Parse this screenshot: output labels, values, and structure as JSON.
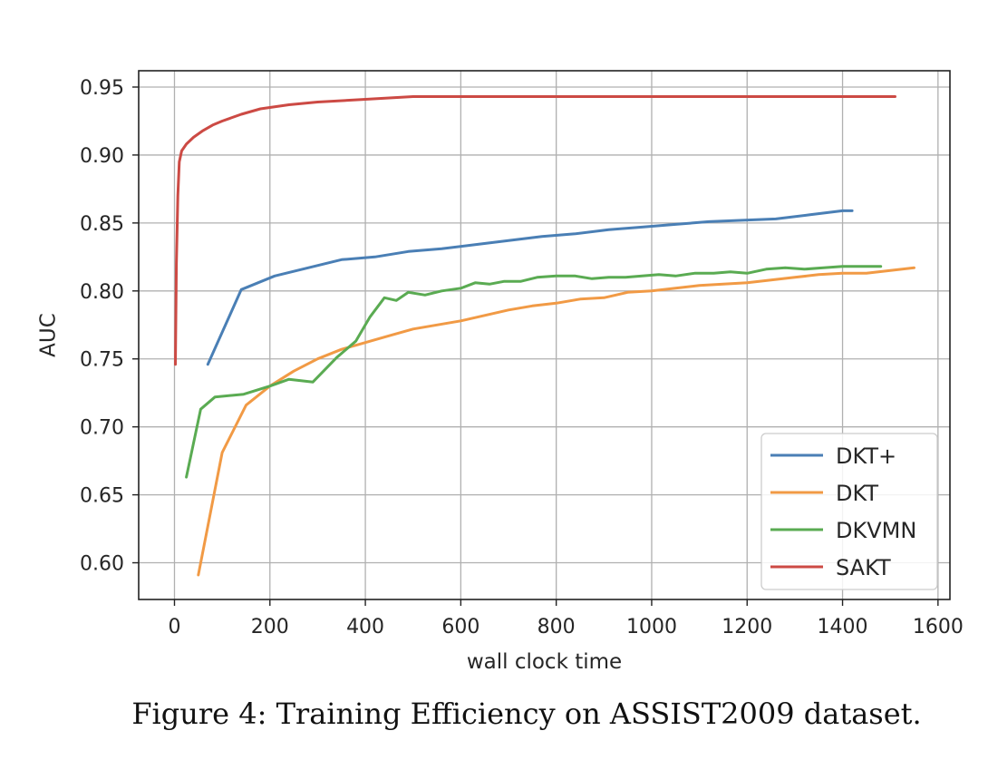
{
  "caption": "Figure 4: Training Efficiency on ASSIST2009 dataset.",
  "chart_data": {
    "type": "line",
    "title": "",
    "xlabel": "wall clock time",
    "ylabel": "AUC",
    "xlim": [
      -75,
      1625
    ],
    "ylim": [
      0.573,
      0.962
    ],
    "xticks": [
      0,
      200,
      400,
      600,
      800,
      1000,
      1200,
      1400,
      1600
    ],
    "yticks": [
      0.6,
      0.65,
      0.7,
      0.75,
      0.8,
      0.85,
      0.9,
      0.95
    ],
    "xtick_labels": [
      "0",
      "200",
      "400",
      "600",
      "800",
      "1000",
      "1200",
      "1400",
      "1600"
    ],
    "ytick_labels": [
      "0.60",
      "0.65",
      "0.70",
      "0.75",
      "0.80",
      "0.85",
      "0.90",
      "0.95"
    ],
    "grid": true,
    "legend_position": "lower-right",
    "series": [
      {
        "name": "DKT+",
        "color": "#4a7fb5",
        "x": [
          70,
          140,
          210,
          280,
          350,
          420,
          490,
          560,
          630,
          700,
          770,
          840,
          910,
          980,
          1050,
          1120,
          1190,
          1260,
          1330,
          1400,
          1420
        ],
        "y": [
          0.746,
          0.801,
          0.811,
          0.817,
          0.823,
          0.825,
          0.829,
          0.831,
          0.834,
          0.837,
          0.84,
          0.842,
          0.845,
          0.847,
          0.849,
          0.851,
          0.852,
          0.853,
          0.856,
          0.859,
          0.859
        ]
      },
      {
        "name": "DKT",
        "color": "#f19a45",
        "x": [
          50,
          100,
          150,
          200,
          250,
          300,
          350,
          400,
          450,
          500,
          550,
          600,
          650,
          700,
          750,
          800,
          850,
          900,
          950,
          1000,
          1050,
          1100,
          1150,
          1200,
          1250,
          1300,
          1350,
          1400,
          1450,
          1500,
          1550
        ],
        "y": [
          0.591,
          0.681,
          0.716,
          0.73,
          0.741,
          0.75,
          0.757,
          0.762,
          0.767,
          0.772,
          0.775,
          0.778,
          0.782,
          0.786,
          0.789,
          0.791,
          0.794,
          0.795,
          0.799,
          0.8,
          0.802,
          0.804,
          0.805,
          0.806,
          0.808,
          0.81,
          0.812,
          0.813,
          0.813,
          0.815,
          0.817
        ]
      },
      {
        "name": "DKVMN",
        "color": "#5aab52",
        "x": [
          25,
          55,
          85,
          145,
          200,
          240,
          290,
          340,
          380,
          410,
          440,
          465,
          490,
          525,
          560,
          600,
          630,
          660,
          690,
          725,
          760,
          800,
          840,
          875,
          910,
          945,
          980,
          1015,
          1050,
          1090,
          1130,
          1165,
          1200,
          1240,
          1280,
          1320,
          1360,
          1400,
          1440,
          1480
        ],
        "y": [
          0.663,
          0.713,
          0.722,
          0.724,
          0.73,
          0.735,
          0.733,
          0.751,
          0.763,
          0.781,
          0.795,
          0.793,
          0.799,
          0.797,
          0.8,
          0.802,
          0.806,
          0.805,
          0.807,
          0.807,
          0.81,
          0.811,
          0.811,
          0.809,
          0.81,
          0.81,
          0.811,
          0.812,
          0.811,
          0.813,
          0.813,
          0.814,
          0.813,
          0.816,
          0.817,
          0.816,
          0.817,
          0.818,
          0.818,
          0.818
        ]
      },
      {
        "name": "SAKT",
        "color": "#cc4a44",
        "x": [
          2,
          4,
          7,
          10,
          15,
          25,
          40,
          60,
          80,
          100,
          140,
          180,
          240,
          300,
          400,
          500,
          600,
          700,
          800,
          900,
          1000,
          1100,
          1200,
          1300,
          1400,
          1510
        ],
        "y": [
          0.746,
          0.82,
          0.87,
          0.895,
          0.903,
          0.908,
          0.913,
          0.918,
          0.922,
          0.925,
          0.93,
          0.934,
          0.937,
          0.939,
          0.941,
          0.943,
          0.943,
          0.943,
          0.943,
          0.943,
          0.943,
          0.943,
          0.943,
          0.943,
          0.943,
          0.943
        ]
      }
    ]
  }
}
